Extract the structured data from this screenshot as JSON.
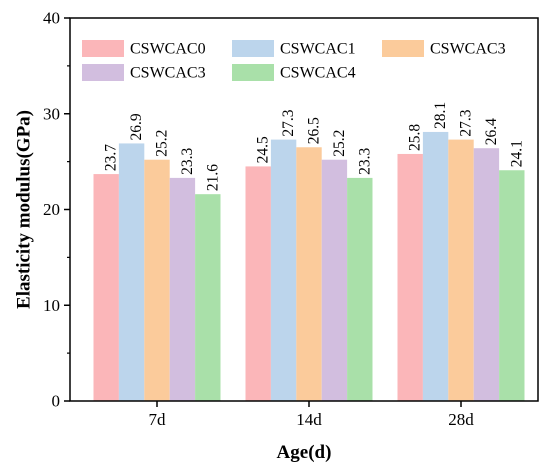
{
  "chart_data": {
    "type": "bar",
    "title": "",
    "xlabel": "Age(d)",
    "ylabel": "Elasticity modulus(GPa)",
    "categories": [
      "7d",
      "14d",
      "28d"
    ],
    "ylim": [
      0,
      40
    ],
    "yticks": [
      0,
      10,
      20,
      30,
      40
    ],
    "grid": false,
    "legend_position": "top",
    "series": [
      {
        "name": "CSWCAC0",
        "color": "#fbb6b9",
        "values": [
          23.7,
          24.5,
          25.8
        ],
        "labels": [
          "23.7",
          "24.5",
          "25.8"
        ]
      },
      {
        "name": "CSWCAC1",
        "color": "#bcd5ec",
        "values": [
          26.9,
          27.3,
          28.1
        ],
        "labels": [
          "26.9",
          "27.3",
          "28.1"
        ]
      },
      {
        "name": "CSWCAC3",
        "color": "#fbcb9b",
        "values": [
          25.2,
          26.5,
          27.3
        ],
        "labels": [
          "25.2",
          "26.5",
          "27.3"
        ]
      },
      {
        "name": "CSWCAC3",
        "color": "#d2bedf",
        "values": [
          23.3,
          25.2,
          26.4
        ],
        "labels": [
          "23.3",
          "25.2",
          "26.4"
        ]
      },
      {
        "name": "CSWCAC4",
        "color": "#a9e0a9",
        "values": [
          21.6,
          23.3,
          24.1
        ],
        "labels": [
          "21.6",
          "23.3",
          "24.1"
        ]
      }
    ]
  }
}
